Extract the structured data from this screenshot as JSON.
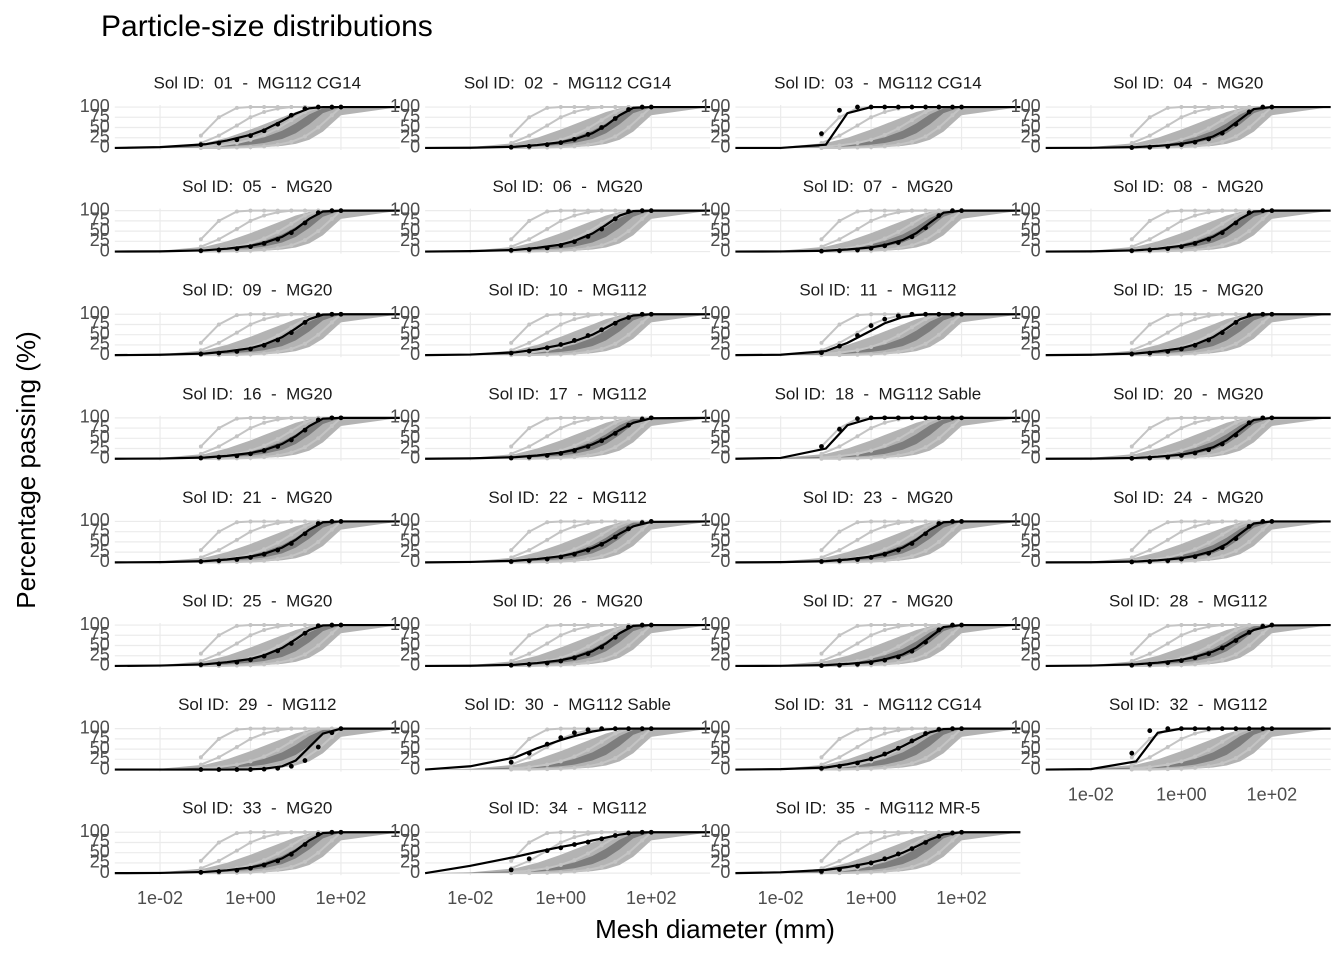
{
  "chart_data": {
    "type": "line",
    "title": "Particle-size distributions",
    "xlabel": "Mesh diameter (mm)",
    "ylabel": "Percentage passing (%)",
    "xscale": "log",
    "grid": true,
    "xlim": [
      0.001,
      2000
    ],
    "xticks": [
      {
        "value": 0.01,
        "label": "1e-02"
      },
      {
        "value": 1,
        "label": "1e+00"
      },
      {
        "value": 100,
        "label": "1e+02"
      }
    ],
    "ylim": [
      -5,
      105
    ],
    "yticks": [
      0,
      25,
      50,
      75,
      100
    ],
    "x": [
      0.08,
      0.2,
      0.5,
      1,
      2,
      4,
      8,
      16,
      31.5,
      63,
      100
    ],
    "curve_x": [
      0.001,
      0.01,
      0.1,
      0.3,
      1,
      2,
      5,
      10,
      20,
      40,
      100,
      2000
    ],
    "point_color": "#000000",
    "curve_color": "#000000",
    "background": {
      "bands": [
        {
          "color": "#b3b3b3",
          "lower": [
            0,
            0,
            0,
            0,
            1,
            2,
            5,
            10,
            20,
            40,
            80,
            100
          ],
          "upper": [
            0,
            2,
            12,
            25,
            45,
            58,
            75,
            88,
            97,
            100,
            100,
            100
          ]
        },
        {
          "color": "#7d7d7d",
          "lower": [
            0,
            0,
            2,
            4,
            8,
            12,
            22,
            36,
            58,
            85,
            100,
            100
          ],
          "upper": [
            0,
            1,
            5,
            10,
            18,
            26,
            42,
            60,
            82,
            97,
            100,
            100
          ]
        }
      ],
      "line_color": "#c4c4c4",
      "lines": [
        [
          30,
          75,
          98,
          100,
          100,
          100,
          100,
          100,
          100,
          100,
          100
        ],
        [
          12,
          30,
          55,
          75,
          88,
          96,
          100,
          100,
          100,
          100,
          100
        ],
        [
          3,
          6,
          12,
          20,
          32,
          48,
          68,
          88,
          100,
          100,
          100
        ],
        [
          0,
          0,
          1,
          2,
          4,
          8,
          15,
          28,
          50,
          80,
          100
        ]
      ]
    },
    "panels": [
      {
        "title": "Sol ID:  01  -  MG112 CG14",
        "points": [
          8,
          12,
          20,
          30,
          42,
          58,
          80,
          96,
          100,
          100,
          100
        ],
        "curve": [
          0,
          2,
          9,
          18,
          32,
          44,
          66,
          84,
          97,
          100,
          100,
          100
        ]
      },
      {
        "title": "Sol ID:  02  -  MG112 CG14",
        "points": [
          2,
          4,
          8,
          13,
          21,
          33,
          50,
          72,
          94,
          100,
          100
        ],
        "curve": [
          0,
          0.5,
          3,
          7,
          14,
          21,
          36,
          55,
          80,
          98,
          100,
          100
        ]
      },
      {
        "title": "Sol ID:  03  -  MG112 CG14",
        "points": [
          35,
          92,
          100,
          100,
          100,
          100,
          100,
          100,
          100,
          100,
          100
        ],
        "curve": [
          0,
          0,
          8,
          85,
          100,
          100,
          100,
          100,
          100,
          100,
          100,
          100
        ]
      },
      {
        "title": "Sol ID:  04  -  MG20",
        "points": [
          1,
          2,
          4,
          8,
          14,
          22,
          36,
          58,
          88,
          100,
          100
        ],
        "curve": [
          0,
          0.3,
          2,
          5,
          10,
          16,
          28,
          45,
          70,
          95,
          100,
          100
        ]
      },
      {
        "title": "Sol ID:  05  -  MG20",
        "points": [
          2,
          4,
          7,
          12,
          20,
          30,
          46,
          70,
          95,
          100,
          100
        ],
        "curve": [
          0,
          0.5,
          3,
          7,
          14,
          21,
          36,
          55,
          80,
          98,
          100,
          100
        ]
      },
      {
        "title": "Sol ID:  06  -  MG20",
        "points": [
          3,
          5,
          9,
          15,
          24,
          37,
          55,
          80,
          98,
          100,
          100
        ],
        "curve": [
          0,
          1,
          4,
          9,
          17,
          26,
          44,
          65,
          88,
          99,
          100,
          100
        ]
      },
      {
        "title": "Sol ID:  07  -  MG20",
        "points": [
          1,
          2,
          4,
          8,
          14,
          22,
          36,
          58,
          88,
          100,
          100
        ],
        "curve": [
          0,
          0.3,
          2,
          5,
          10,
          16,
          28,
          45,
          70,
          95,
          100,
          100
        ]
      },
      {
        "title": "Sol ID:  08  -  MG20",
        "points": [
          2,
          4,
          7,
          12,
          20,
          30,
          46,
          70,
          95,
          100,
          100
        ],
        "curve": [
          0,
          0.5,
          3,
          7,
          14,
          21,
          36,
          55,
          80,
          98,
          100,
          100
        ]
      },
      {
        "title": "Sol ID:  09  -  MG20",
        "points": [
          3,
          5,
          9,
          15,
          24,
          37,
          55,
          80,
          98,
          100,
          100
        ],
        "curve": [
          0,
          1,
          4,
          9,
          17,
          26,
          44,
          65,
          88,
          99,
          100,
          100
        ]
      },
      {
        "title": "Sol ID:  10  -  MG112",
        "points": [
          5,
          10,
          18,
          26,
          36,
          48,
          62,
          78,
          92,
          100,
          100
        ],
        "curve": [
          0,
          1.5,
          7,
          14,
          25,
          34,
          50,
          67,
          85,
          97,
          100,
          100
        ]
      },
      {
        "title": "Sol ID:  11  -  MG112",
        "points": [
          6,
          22,
          48,
          72,
          88,
          96,
          100,
          100,
          100,
          100,
          100
        ],
        "curve": [
          0,
          1,
          10,
          30,
          60,
          78,
          93,
          98,
          100,
          100,
          100,
          100
        ]
      },
      {
        "title": "Sol ID:  15  -  MG20",
        "points": [
          3,
          5,
          9,
          15,
          24,
          37,
          55,
          80,
          98,
          100,
          100
        ],
        "curve": [
          0,
          1,
          4,
          9,
          17,
          26,
          44,
          65,
          88,
          99,
          100,
          100
        ]
      },
      {
        "title": "Sol ID:  16  -  MG20",
        "points": [
          2,
          4,
          7,
          12,
          20,
          30,
          46,
          70,
          95,
          100,
          100
        ],
        "curve": [
          0,
          0.5,
          3,
          7,
          14,
          21,
          36,
          55,
          80,
          98,
          100,
          100
        ]
      },
      {
        "title": "Sol ID:  17  -  MG112",
        "points": [
          2,
          4,
          8,
          13,
          20,
          30,
          44,
          62,
          82,
          97,
          100
        ],
        "curve": [
          0,
          1,
          4,
          8,
          15,
          22,
          35,
          50,
          70,
          88,
          99,
          100
        ]
      },
      {
        "title": "Sol ID:  18  -  MG112 Sable",
        "points": [
          30,
          72,
          98,
          100,
          100,
          100,
          100,
          100,
          100,
          100,
          100
        ],
        "curve": [
          0,
          2,
          25,
          82,
          99,
          100,
          100,
          100,
          100,
          100,
          100,
          100
        ]
      },
      {
        "title": "Sol ID:  20  -  MG20",
        "points": [
          1,
          2,
          4,
          8,
          14,
          22,
          36,
          58,
          88,
          100,
          100
        ],
        "curve": [
          0,
          0.3,
          2,
          5,
          10,
          16,
          28,
          45,
          70,
          95,
          100,
          100
        ]
      },
      {
        "title": "Sol ID:  21  -  MG20",
        "points": [
          2,
          4,
          7,
          12,
          20,
          30,
          46,
          70,
          95,
          100,
          100
        ],
        "curve": [
          0,
          0.5,
          3,
          7,
          14,
          21,
          36,
          55,
          80,
          98,
          100,
          100
        ]
      },
      {
        "title": "Sol ID:  22  -  MG112",
        "points": [
          2,
          4,
          8,
          13,
          20,
          30,
          44,
          62,
          82,
          97,
          100
        ],
        "curve": [
          0,
          1,
          4,
          8,
          15,
          22,
          35,
          50,
          70,
          88,
          99,
          100
        ]
      },
      {
        "title": "Sol ID:  23  -  MG20",
        "points": [
          2,
          4,
          7,
          12,
          20,
          30,
          46,
          70,
          95,
          100,
          100
        ],
        "curve": [
          0,
          0.5,
          3,
          7,
          14,
          21,
          36,
          55,
          80,
          98,
          100,
          100
        ]
      },
      {
        "title": "Sol ID:  24  -  MG20",
        "points": [
          1,
          2,
          4,
          8,
          14,
          22,
          36,
          58,
          88,
          100,
          100
        ],
        "curve": [
          0,
          0.3,
          2,
          5,
          10,
          16,
          28,
          45,
          70,
          95,
          100,
          100
        ]
      },
      {
        "title": "Sol ID:  25  -  MG20",
        "points": [
          3,
          5,
          9,
          15,
          24,
          37,
          55,
          80,
          98,
          100,
          100
        ],
        "curve": [
          0,
          1,
          4,
          9,
          17,
          26,
          44,
          65,
          88,
          99,
          100,
          100
        ]
      },
      {
        "title": "Sol ID:  26  -  MG20",
        "points": [
          2,
          4,
          7,
          12,
          20,
          30,
          46,
          70,
          95,
          100,
          100
        ],
        "curve": [
          0,
          0.5,
          3,
          7,
          14,
          21,
          36,
          55,
          80,
          98,
          100,
          100
        ]
      },
      {
        "title": "Sol ID:  27  -  MG20",
        "points": [
          1,
          2,
          4,
          8,
          14,
          22,
          36,
          58,
          88,
          100,
          100
        ],
        "curve": [
          0,
          0.3,
          2,
          5,
          10,
          16,
          28,
          45,
          70,
          95,
          100,
          100
        ]
      },
      {
        "title": "Sol ID:  28  -  MG112",
        "points": [
          2,
          4,
          8,
          13,
          20,
          30,
          44,
          62,
          82,
          97,
          100
        ],
        "curve": [
          0,
          1,
          4,
          8,
          15,
          22,
          35,
          50,
          70,
          88,
          99,
          100
        ]
      },
      {
        "title": "Sol ID:  29  -  MG112",
        "points": [
          0,
          0,
          0,
          0,
          1,
          3,
          8,
          22,
          55,
          90,
          100
        ],
        "curve": [
          0,
          0,
          0,
          0,
          0.5,
          2,
          8,
          22,
          55,
          88,
          100,
          100
        ]
      },
      {
        "title": "Sol ID:  30  -  MG112 Sable",
        "points": [
          18,
          40,
          62,
          78,
          90,
          97,
          100,
          100,
          100,
          100,
          100
        ],
        "curve": [
          0,
          8,
          30,
          52,
          72,
          82,
          93,
          98,
          100,
          100,
          100,
          100
        ]
      },
      {
        "title": "Sol ID:  31  -  MG112 CG14",
        "points": [
          3,
          8,
          16,
          26,
          38,
          52,
          70,
          88,
          98,
          100,
          100
        ],
        "curve": [
          0,
          1,
          5,
          13,
          26,
          37,
          57,
          74,
          91,
          99,
          100,
          100
        ]
      },
      {
        "title": "Sol ID:  32  -  MG112",
        "points": [
          40,
          95,
          100,
          100,
          100,
          100,
          100,
          100,
          100,
          100,
          100
        ],
        "curve": [
          0,
          1,
          20,
          90,
          100,
          100,
          100,
          100,
          100,
          100,
          100,
          100
        ]
      },
      {
        "title": "Sol ID:  33  -  MG20",
        "points": [
          2,
          4,
          7,
          12,
          20,
          30,
          46,
          70,
          95,
          100,
          100
        ],
        "curve": [
          0,
          0.5,
          3,
          7,
          14,
          21,
          36,
          55,
          80,
          98,
          100,
          100
        ]
      },
      {
        "title": "Sol ID:  34  -  MG112",
        "points": [
          8,
          35,
          55,
          62,
          70,
          76,
          84,
          92,
          98,
          100,
          100
        ],
        "curve": [
          0,
          18,
          40,
          52,
          64,
          70,
          80,
          87,
          94,
          99,
          100,
          100
        ]
      },
      {
        "title": "Sol ID:  35  -  MG112 MR-5",
        "points": [
          4,
          9,
          17,
          25,
          35,
          47,
          60,
          75,
          90,
          98,
          100
        ],
        "curve": [
          0,
          2,
          8,
          15,
          26,
          34,
          50,
          65,
          82,
          95,
          100,
          100
        ]
      }
    ]
  }
}
